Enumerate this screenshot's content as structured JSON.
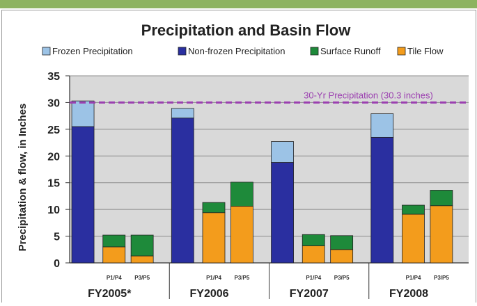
{
  "chart_data": {
    "type": "bar",
    "stacked": true,
    "title": "Precipitation and Basin Flow",
    "ylabel": "Precipitation & flow, in Inches",
    "ylim": [
      0,
      35
    ],
    "yticks": [
      0,
      5,
      10,
      15,
      20,
      25,
      30,
      35
    ],
    "grid": true,
    "legend_position": "top",
    "groups": [
      {
        "label": "FY2005*",
        "bars": [
          {
            "sub": "",
            "frozen": 4.8,
            "nonfrozen": 25.5,
            "runoff": 0,
            "tile": 0
          },
          {
            "sub": "P1/P4",
            "frozen": 0,
            "nonfrozen": 0,
            "runoff": 2.2,
            "tile": 3.0
          },
          {
            "sub": "P3/P5",
            "frozen": 0,
            "nonfrozen": 0,
            "runoff": 3.9,
            "tile": 1.3
          }
        ]
      },
      {
        "label": "FY2006",
        "bars": [
          {
            "sub": "",
            "frozen": 1.8,
            "nonfrozen": 27.1,
            "runoff": 0,
            "tile": 0
          },
          {
            "sub": "P1/P4",
            "frozen": 0,
            "nonfrozen": 0,
            "runoff": 1.9,
            "tile": 9.4
          },
          {
            "sub": "P3/P5",
            "frozen": 0,
            "nonfrozen": 0,
            "runoff": 4.5,
            "tile": 10.6
          }
        ]
      },
      {
        "label": "FY2007",
        "bars": [
          {
            "sub": "",
            "frozen": 3.9,
            "nonfrozen": 18.8,
            "runoff": 0,
            "tile": 0
          },
          {
            "sub": "P1/P4",
            "frozen": 0,
            "nonfrozen": 0,
            "runoff": 2.1,
            "tile": 3.2
          },
          {
            "sub": "P3/P5",
            "frozen": 0,
            "nonfrozen": 0,
            "runoff": 2.6,
            "tile": 2.5
          }
        ]
      },
      {
        "label": "FY2008",
        "bars": [
          {
            "sub": "",
            "frozen": 4.4,
            "nonfrozen": 23.5,
            "runoff": 0,
            "tile": 0
          },
          {
            "sub": "P1/P4",
            "frozen": 0,
            "nonfrozen": 0,
            "runoff": 1.7,
            "tile": 9.1
          },
          {
            "sub": "P3/P5",
            "frozen": 0,
            "nonfrozen": 0,
            "runoff": 2.9,
            "tile": 10.7
          }
        ]
      }
    ],
    "series": [
      {
        "key": "nonfrozen",
        "name": "Non-frozen Precipitation",
        "color": "#2a2fa0"
      },
      {
        "key": "frozen",
        "name": "Frozen Precipitation",
        "color": "#9cc3e6"
      },
      {
        "key": "tile",
        "name": "Tile Flow",
        "color": "#f39c1c"
      },
      {
        "key": "runoff",
        "name": "Surface Runoff",
        "color": "#1e8a3a"
      }
    ],
    "legend_order": [
      "Frozen Precipitation",
      "Non-frozen Precipitation",
      "Surface Runoff",
      "Tile Flow"
    ],
    "reference_line": {
      "value": 30,
      "label": "30-Yr Precipitation (30.3 inches)",
      "color": "#9b3fb0"
    }
  }
}
